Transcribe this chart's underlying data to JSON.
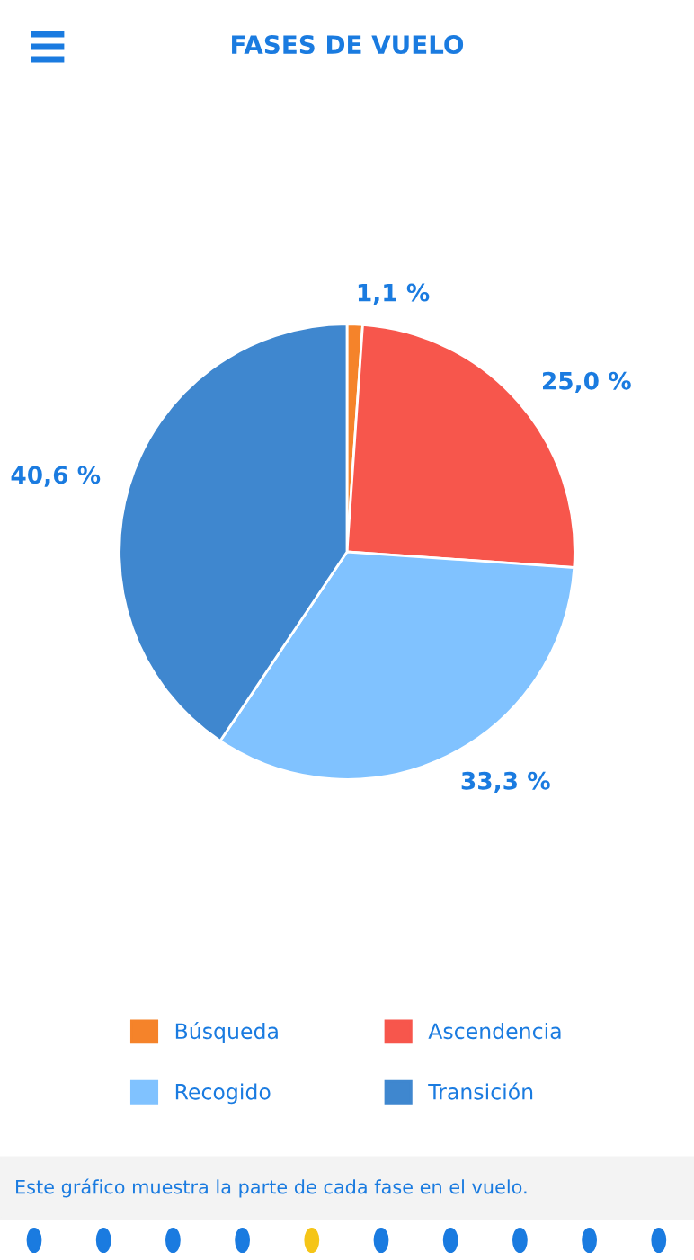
{
  "chart_data": {
    "type": "pie",
    "title": "FASES DE VUELO",
    "categories": [
      "Búsqueda",
      "Ascendencia",
      "Recogido",
      "Transición"
    ],
    "values": [
      1.1,
      25.0,
      33.3,
      40.6
    ],
    "colors": [
      "#f5832a",
      "#f7564c",
      "#80c2ff",
      "#3f87cf"
    ],
    "value_labels": [
      "1,1 %",
      "25,0 %",
      "33,3 %",
      "40,6 %"
    ],
    "legend": "bottom",
    "annotations": [
      "Este gráfico muestra la parte de cada fase en el vuelo."
    ]
  }
}
